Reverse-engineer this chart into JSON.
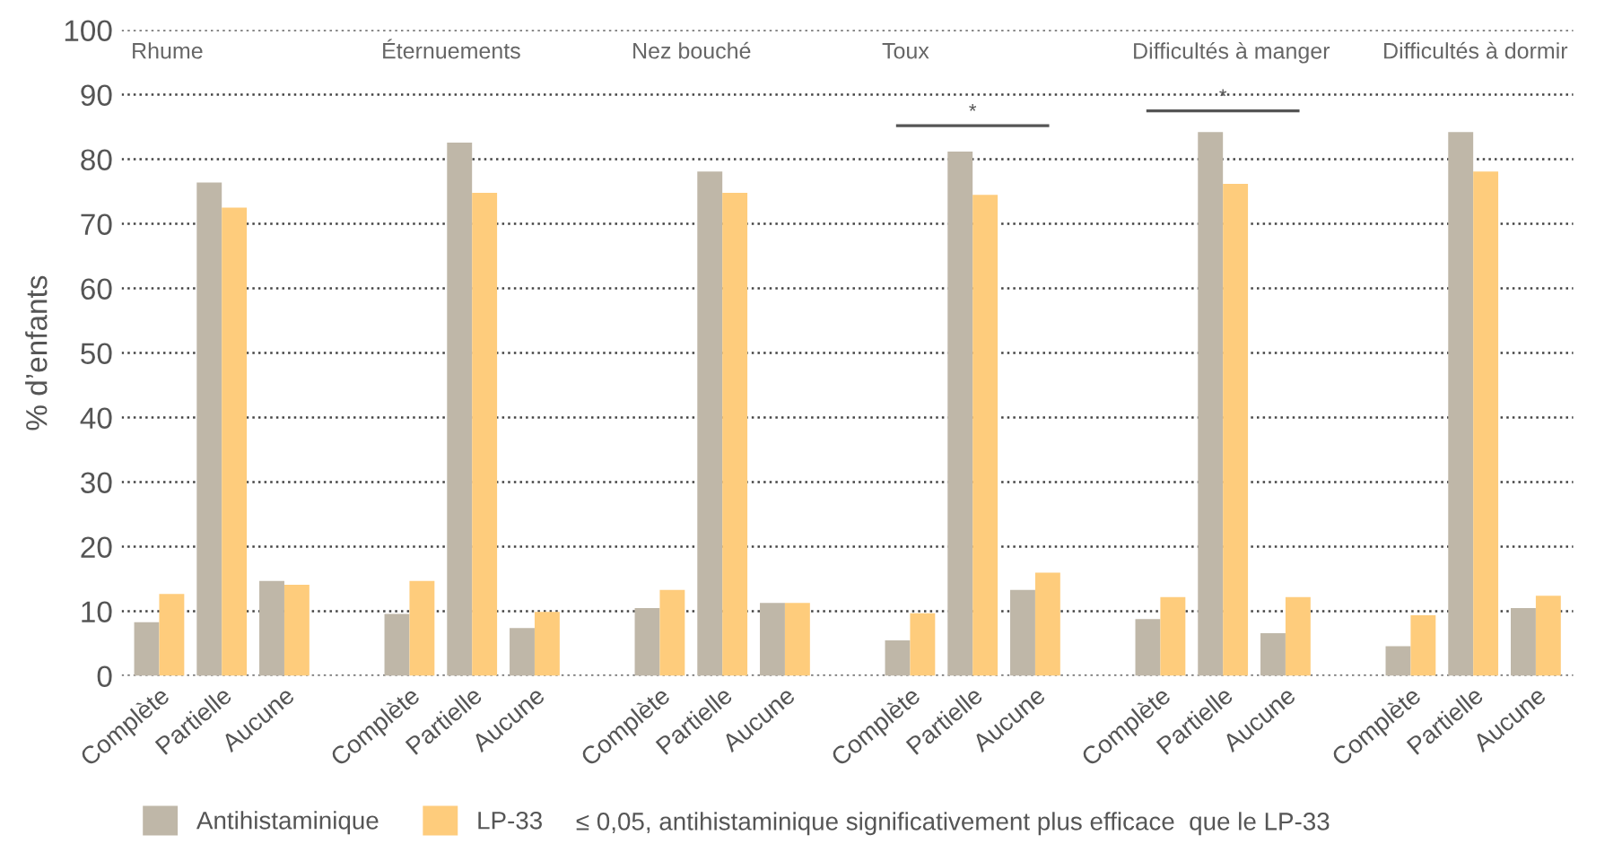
{
  "chart_data": {
    "type": "bar",
    "ylabel": "% d’enfants",
    "categories": [
      "Complète",
      "Partielle",
      "Aucune",
      null,
      "Complète",
      "Partielle",
      "Aucune",
      null,
      "Complète",
      "Partielle",
      "Aucune",
      null,
      "Complète",
      "Partielle",
      "Aucune",
      null,
      "Complète",
      "Partielle",
      "Aucune",
      null,
      "Complète",
      "Partielle",
      "Aucune"
    ],
    "series": [
      {
        "name": "Antihistaminique",
        "color": "#bfb7a8",
        "values": [
          8.3,
          76.4,
          14.7,
          null,
          9.6,
          82.6,
          7.4,
          null,
          10.5,
          78.1,
          11.3,
          null,
          5.5,
          81.2,
          13.3,
          null,
          8.8,
          84.2,
          6.6,
          null,
          4.6,
          84.2,
          10.5
        ]
      },
      {
        "name": "LP-33",
        "color": "#fecc7c",
        "values": [
          12.7,
          72.5,
          14.1,
          null,
          14.7,
          74.8,
          9.9,
          null,
          13.3,
          74.8,
          11.3,
          null,
          9.7,
          74.5,
          16.0,
          null,
          12.2,
          76.2,
          12.2,
          null,
          9.4,
          78.1,
          12.4
        ]
      }
    ],
    "ylim": [
      0,
      100
    ],
    "yticks": [
      0,
      10,
      20,
      30,
      40,
      50,
      60,
      70,
      80,
      90,
      100
    ],
    "grid": "y",
    "legend": "bottom",
    "annotations": [
      "Rhume",
      "Éternuements",
      "Nez bouché",
      "Toux",
      "Difficultés à manger",
      "Difficultés à dormir",
      "*",
      "*",
      "≤ 0,05, antihistaminique significativement plus efficace  que le LP-33"
    ]
  }
}
